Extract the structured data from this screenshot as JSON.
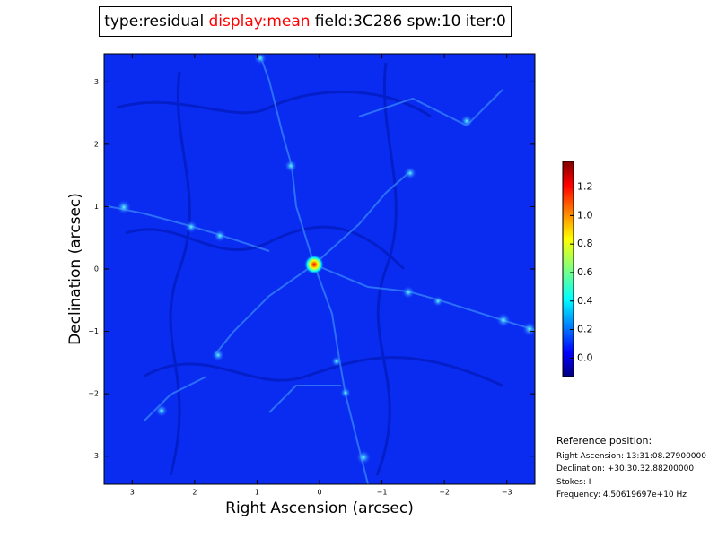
{
  "header": {
    "items": [
      {
        "text": "type:residual",
        "color": "#000000"
      },
      {
        "text": "display:mean",
        "color": "#ff0000"
      },
      {
        "text": "field:3C286",
        "color": "#000000"
      },
      {
        "text": "spw:10",
        "color": "#000000"
      },
      {
        "text": "iter:0",
        "color": "#000000"
      }
    ]
  },
  "chart_data": {
    "type": "image",
    "xlabel": "Right Ascension (arcsec)",
    "ylabel": "Declination (arcsec)",
    "xlim": [
      3.45,
      -3.45
    ],
    "ylim": [
      -3.45,
      3.45
    ],
    "xticks": [
      3,
      2,
      1,
      0,
      {
        "value": -1,
        "label": "−1"
      },
      {
        "value": -2,
        "label": "−2"
      },
      {
        "value": -3,
        "label": "−3"
      }
    ],
    "yticks": [
      {
        "value": -3,
        "label": "−3"
      },
      {
        "value": -2,
        "label": "−2"
      },
      {
        "value": -1,
        "label": "−1"
      },
      0,
      1,
      2,
      3
    ],
    "colormap": "jet",
    "clim": [
      -0.13,
      1.38
    ],
    "cticks": [
      {
        "value": 0,
        "label": "0.0"
      },
      0.2,
      0.4,
      0.6,
      0.8,
      {
        "value": 1,
        "label": "1.0"
      },
      1.2
    ]
  },
  "reference": {
    "title": "Reference position:",
    "lines": [
      "Right Ascension: 13:31:08.27900000",
      "Declination: +30.30.32.88200000",
      "Stokes: I",
      "Frequency: 4.50619697e+10 Hz"
    ]
  }
}
